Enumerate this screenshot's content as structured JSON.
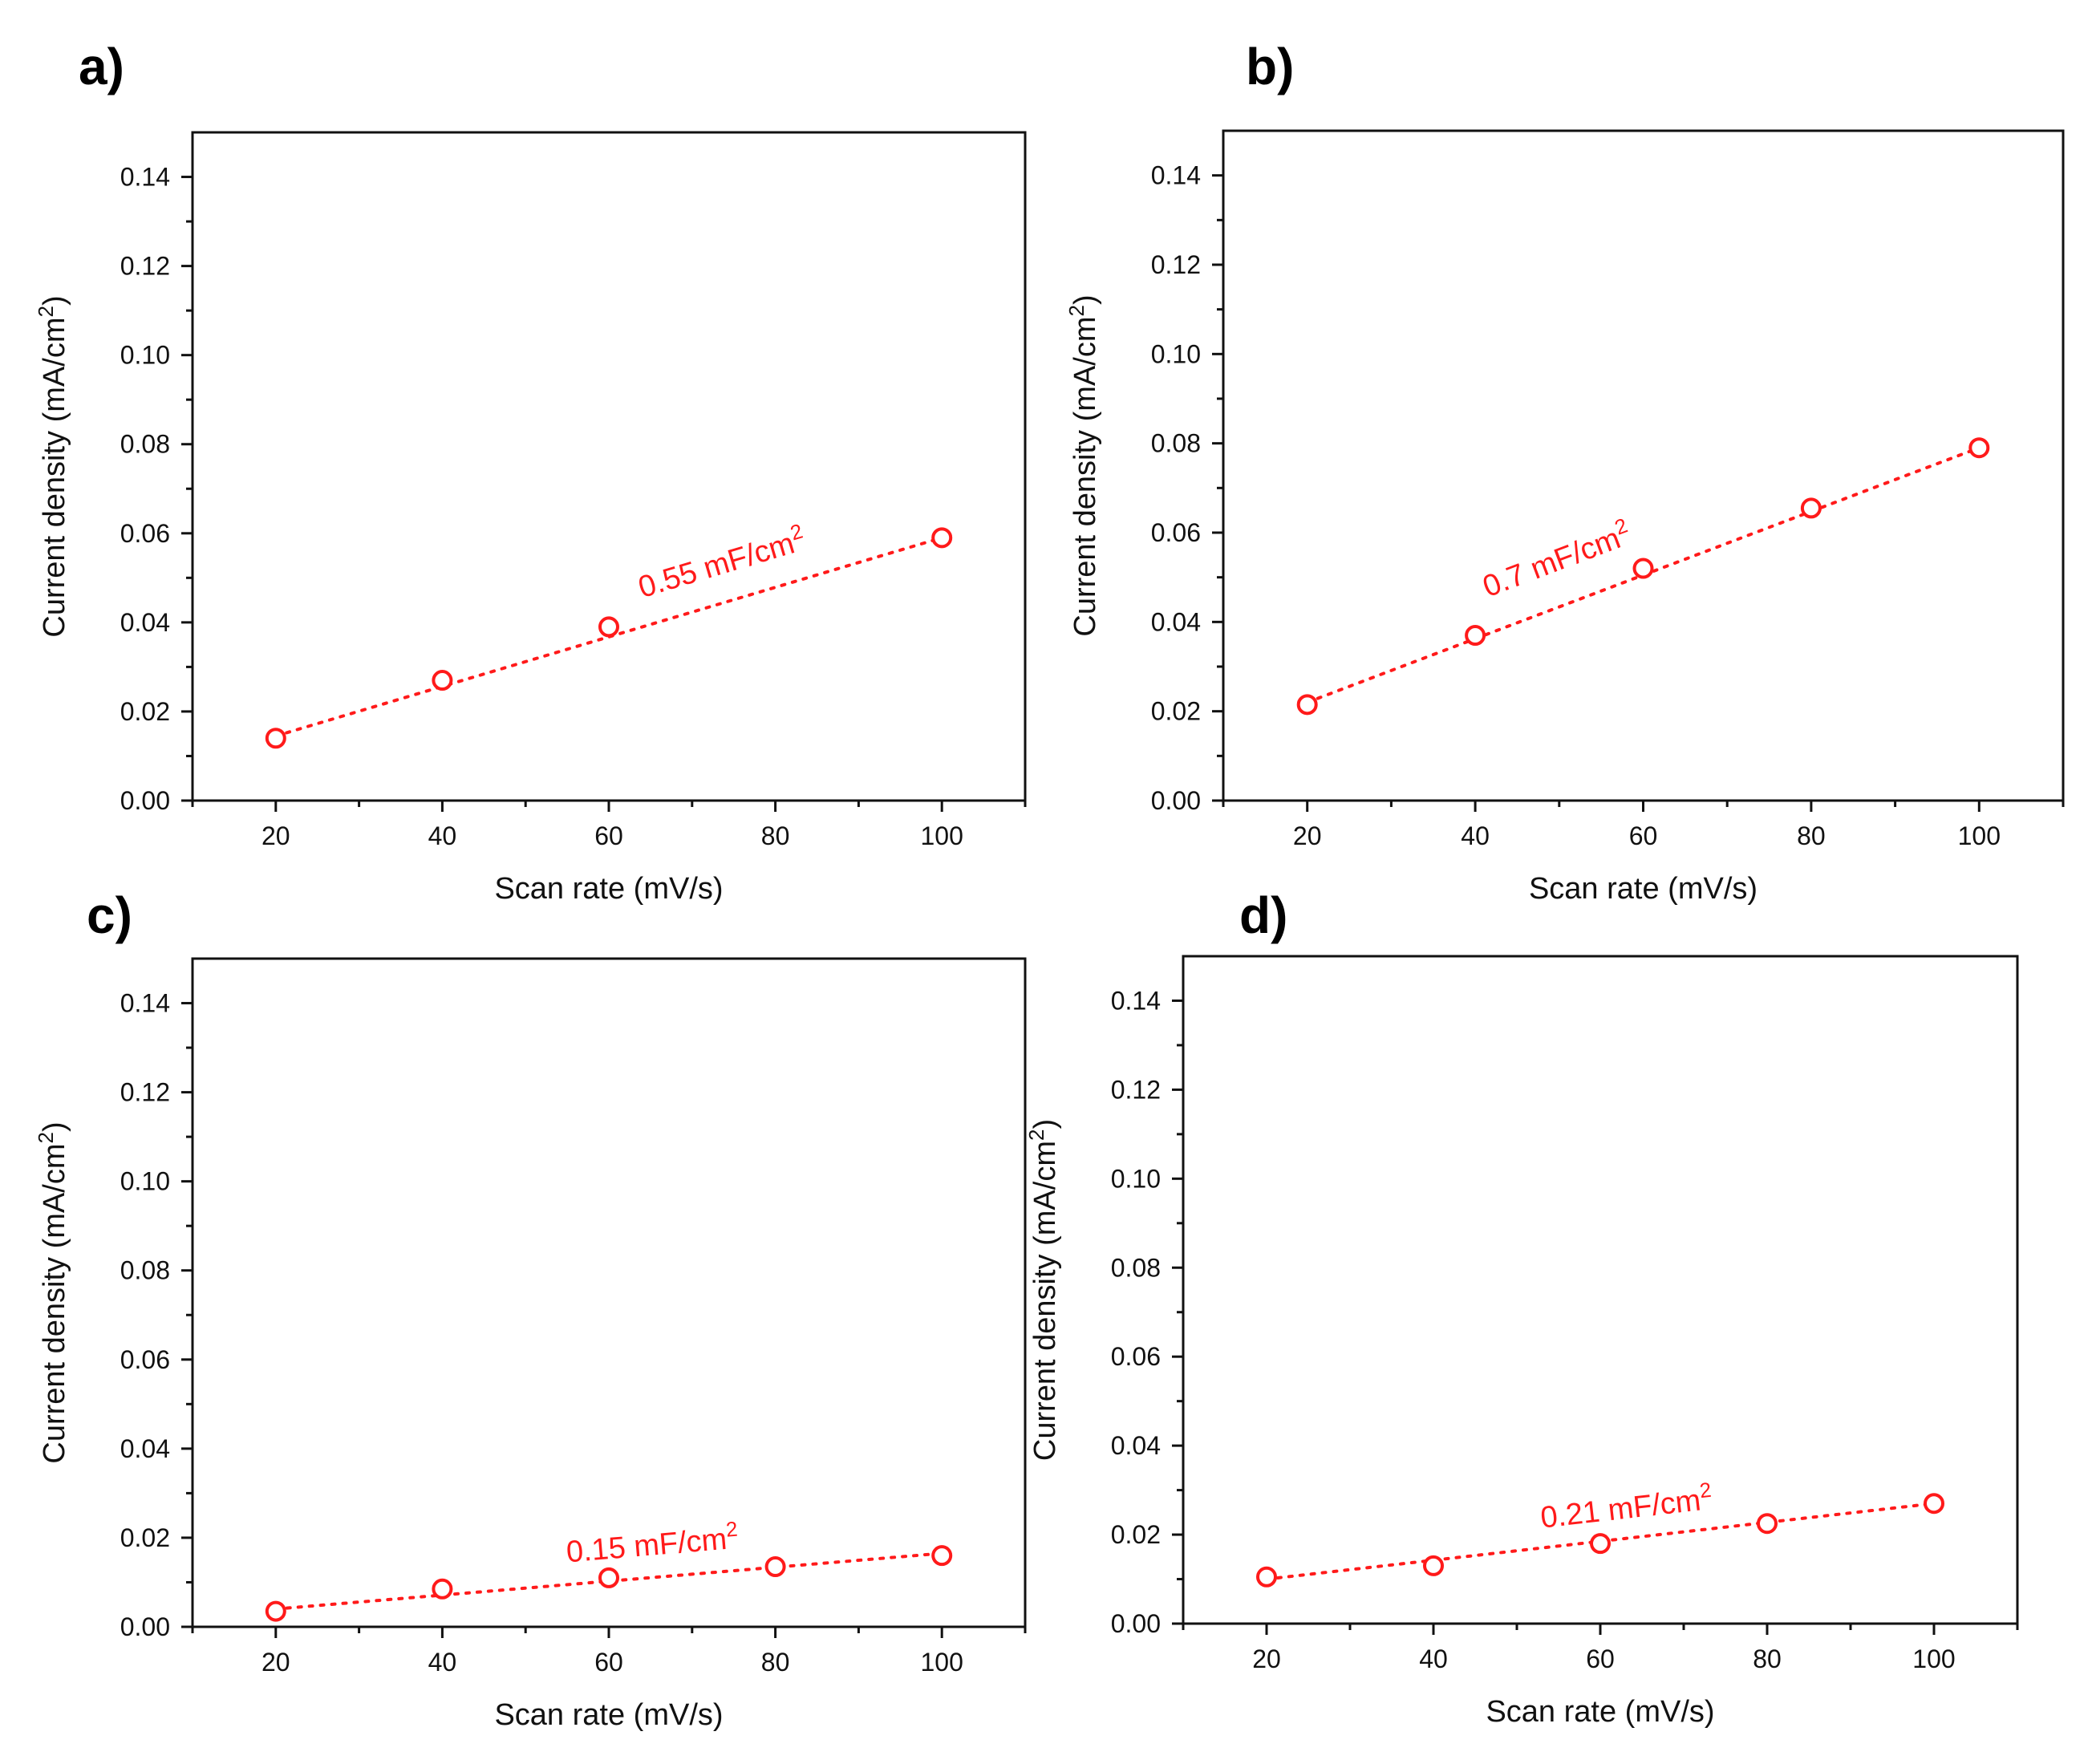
{
  "colors": {
    "series": "#ff1a1a",
    "axis": "#111111",
    "background": "#ffffff"
  },
  "chart_data": [
    {
      "panel": "a)",
      "type": "scatter",
      "xlabel": "Scan rate (mV/s)",
      "ylabel_main": "Current density (mA/cm",
      "ylabel_sup": "2",
      "ylabel_tail": ")",
      "xlim": [
        10,
        110
      ],
      "ylim": [
        0,
        0.15
      ],
      "xticks": [
        "20",
        "40",
        "60",
        "80",
        "100"
      ],
      "yticks": [
        "0.00",
        "0.02",
        "0.04",
        "0.06",
        "0.08",
        "0.10",
        "0.12",
        "0.14"
      ],
      "x": [
        20,
        40,
        60,
        100
      ],
      "y": [
        0.014,
        0.027,
        0.039,
        0.059
      ],
      "fit": {
        "x": [
          20,
          100
        ],
        "y": [
          0.0145,
          0.059
        ]
      },
      "annotation": {
        "text": "0.55 mF/cm",
        "sup": "2",
        "x": 64,
        "y": 0.0455
      }
    },
    {
      "panel": "b)",
      "type": "scatter",
      "xlabel": "Scan rate (mV/s)",
      "ylabel_main": "Current density (mA/cm",
      "ylabel_sup": "2",
      "ylabel_tail": ")",
      "xlim": [
        10,
        110
      ],
      "ylim": [
        0,
        0.15
      ],
      "xticks": [
        "20",
        "40",
        "60",
        "80",
        "100"
      ],
      "yticks": [
        "0.00",
        "0.02",
        "0.04",
        "0.06",
        "0.08",
        "0.10",
        "0.12",
        "0.14"
      ],
      "x": [
        20,
        40,
        60,
        80,
        100
      ],
      "y": [
        0.0215,
        0.037,
        0.052,
        0.0655,
        0.079
      ],
      "fit": {
        "x": [
          20,
          100
        ],
        "y": [
          0.022,
          0.079
        ]
      },
      "annotation": {
        "text": "0.7 mF/cm",
        "sup": "2",
        "x": 41.5,
        "y": 0.0455
      }
    },
    {
      "panel": "c)",
      "type": "scatter",
      "xlabel": "Scan rate (mV/s)",
      "ylabel_main": "Current density (mA/cm",
      "ylabel_sup": "2",
      "ylabel_tail": ")",
      "xlim": [
        10,
        110
      ],
      "ylim": [
        0,
        0.15
      ],
      "xticks": [
        "20",
        "40",
        "60",
        "80",
        "100"
      ],
      "yticks": [
        "0.00",
        "0.02",
        "0.04",
        "0.06",
        "0.08",
        "0.10",
        "0.12",
        "0.14"
      ],
      "x": [
        20,
        40,
        60,
        80,
        100
      ],
      "y": [
        0.0035,
        0.0085,
        0.011,
        0.0135,
        0.016
      ],
      "fit": {
        "x": [
          20,
          100
        ],
        "y": [
          0.004,
          0.0165
        ]
      },
      "annotation": {
        "text": "0.15 mF/cm",
        "sup": "2",
        "x": 55,
        "y": 0.0145
      }
    },
    {
      "panel": "d)",
      "type": "scatter",
      "xlabel": "Scan rate (mV/s)",
      "ylabel_main": "Current density (mA/cm",
      "ylabel_sup": "2",
      "ylabel_tail": ")",
      "xlim": [
        10,
        110
      ],
      "ylim": [
        0,
        0.15
      ],
      "xticks": [
        "20",
        "40",
        "60",
        "80",
        "100"
      ],
      "yticks": [
        "0.00",
        "0.02",
        "0.04",
        "0.06",
        "0.08",
        "0.10",
        "0.12",
        "0.14"
      ],
      "x": [
        20,
        40,
        60,
        80,
        100
      ],
      "y": [
        0.0105,
        0.013,
        0.018,
        0.0225,
        0.027
      ],
      "fit": {
        "x": [
          20,
          100
        ],
        "y": [
          0.01,
          0.027
        ]
      },
      "annotation": {
        "text": "0.21 mF/cm",
        "sup": "2",
        "x": 53,
        "y": 0.0215
      }
    }
  ]
}
